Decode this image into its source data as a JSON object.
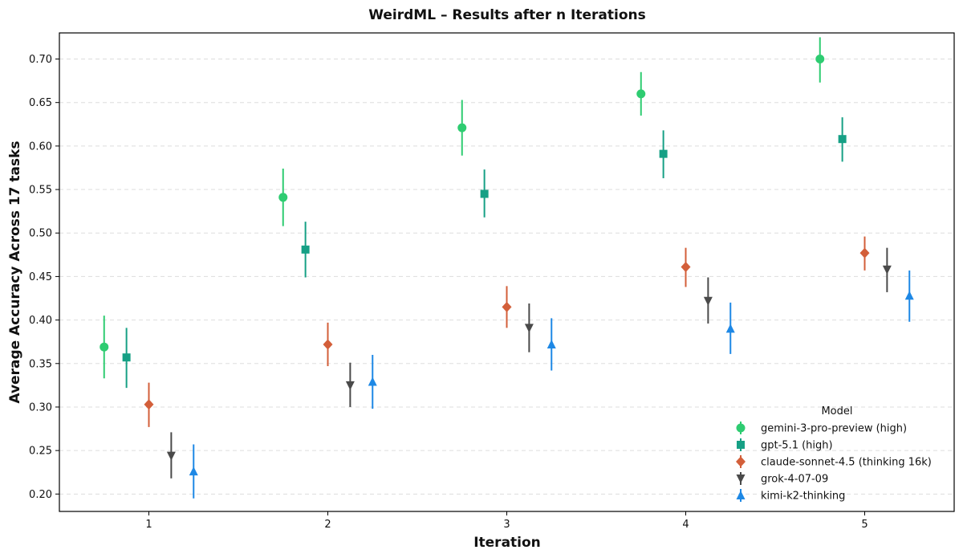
{
  "chart_data": {
    "type": "scatter",
    "title": "WeirdML – Results after n Iterations",
    "xlabel": "Iteration",
    "ylabel": "Average Accuracy Across 17 tasks",
    "x_ticks": [
      1,
      2,
      3,
      4,
      5
    ],
    "xlim": [
      0.5,
      5.5
    ],
    "ylim": [
      0.18,
      0.73
    ],
    "y_ticks": [
      "0.20",
      "0.25",
      "0.30",
      "0.35",
      "0.40",
      "0.45",
      "0.50",
      "0.55",
      "0.60",
      "0.65",
      "0.70"
    ],
    "grid": "y-dashed",
    "legend": {
      "title": "Model",
      "placement": "lower-right"
    },
    "series": [
      {
        "name": "gemini-3-pro-preview (high)",
        "marker": "circle",
        "color": "#2ecc71",
        "offset": -0.25,
        "points": [
          {
            "x": 1,
            "y": 0.369,
            "lo": 0.333,
            "hi": 0.405
          },
          {
            "x": 2,
            "y": 0.541,
            "lo": 0.508,
            "hi": 0.574
          },
          {
            "x": 3,
            "y": 0.621,
            "lo": 0.589,
            "hi": 0.653
          },
          {
            "x": 4,
            "y": 0.66,
            "lo": 0.635,
            "hi": 0.685
          },
          {
            "x": 5,
            "y": 0.7,
            "lo": 0.673,
            "hi": 0.725
          }
        ]
      },
      {
        "name": "gpt-5.1 (high)",
        "marker": "square",
        "color": "#16a085",
        "offset": -0.125,
        "points": [
          {
            "x": 1,
            "y": 0.357,
            "lo": 0.322,
            "hi": 0.391
          },
          {
            "x": 2,
            "y": 0.481,
            "lo": 0.449,
            "hi": 0.513
          },
          {
            "x": 3,
            "y": 0.545,
            "lo": 0.518,
            "hi": 0.573
          },
          {
            "x": 4,
            "y": 0.591,
            "lo": 0.563,
            "hi": 0.618
          },
          {
            "x": 5,
            "y": 0.608,
            "lo": 0.582,
            "hi": 0.633
          }
        ]
      },
      {
        "name": "claude-sonnet-4.5 (thinking 16k)",
        "marker": "diamond",
        "color": "#d35f3a",
        "offset": 0,
        "points": [
          {
            "x": 1,
            "y": 0.303,
            "lo": 0.277,
            "hi": 0.328
          },
          {
            "x": 2,
            "y": 0.372,
            "lo": 0.347,
            "hi": 0.397
          },
          {
            "x": 3,
            "y": 0.415,
            "lo": 0.391,
            "hi": 0.439
          },
          {
            "x": 4,
            "y": 0.461,
            "lo": 0.438,
            "hi": 0.483
          },
          {
            "x": 5,
            "y": 0.477,
            "lo": 0.457,
            "hi": 0.496
          }
        ]
      },
      {
        "name": "grok-4-07-09",
        "marker": "triangle-down",
        "color": "#4a4a4a",
        "offset": 0.125,
        "points": [
          {
            "x": 1,
            "y": 0.244,
            "lo": 0.218,
            "hi": 0.271
          },
          {
            "x": 2,
            "y": 0.325,
            "lo": 0.3,
            "hi": 0.351
          },
          {
            "x": 3,
            "y": 0.391,
            "lo": 0.363,
            "hi": 0.419
          },
          {
            "x": 4,
            "y": 0.422,
            "lo": 0.396,
            "hi": 0.449
          },
          {
            "x": 5,
            "y": 0.458,
            "lo": 0.432,
            "hi": 0.483
          }
        ]
      },
      {
        "name": "kimi-k2-thinking",
        "marker": "triangle-up",
        "color": "#1e88e5",
        "offset": 0.25,
        "points": [
          {
            "x": 1,
            "y": 0.226,
            "lo": 0.195,
            "hi": 0.257
          },
          {
            "x": 2,
            "y": 0.329,
            "lo": 0.298,
            "hi": 0.36
          },
          {
            "x": 3,
            "y": 0.372,
            "lo": 0.342,
            "hi": 0.402
          },
          {
            "x": 4,
            "y": 0.39,
            "lo": 0.361,
            "hi": 0.42
          },
          {
            "x": 5,
            "y": 0.428,
            "lo": 0.398,
            "hi": 0.457
          }
        ]
      }
    ]
  }
}
